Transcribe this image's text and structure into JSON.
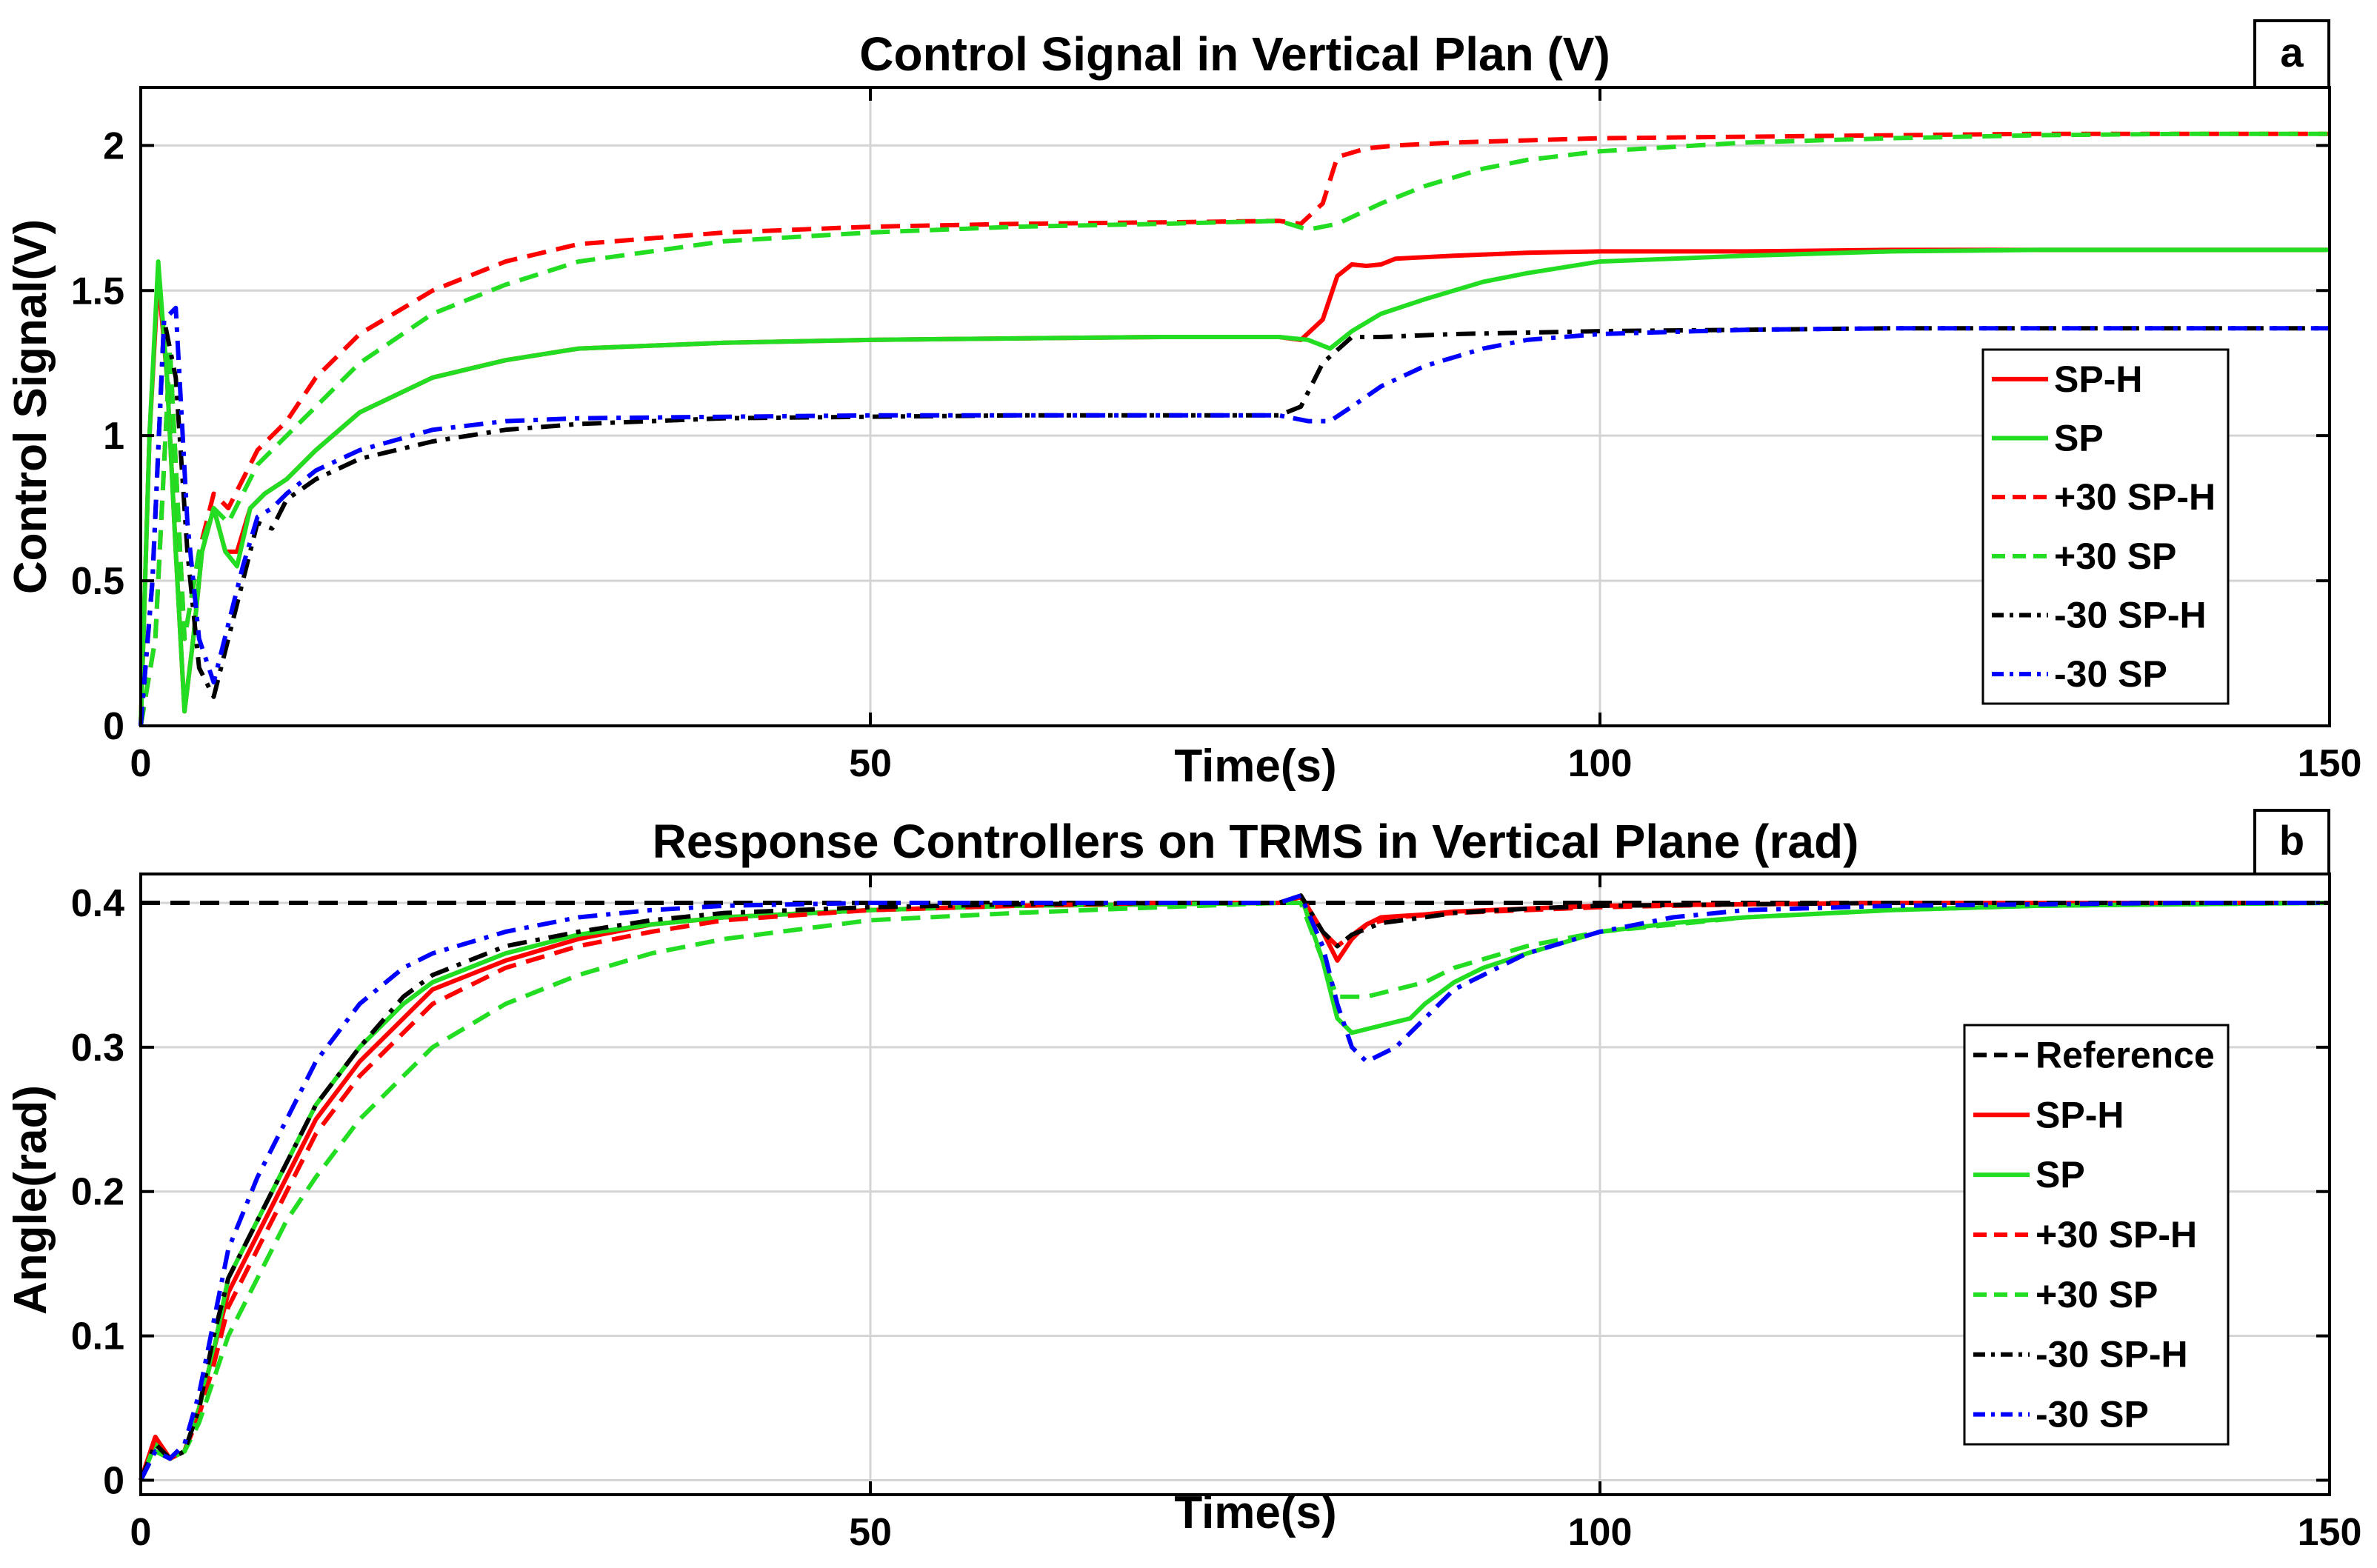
{
  "chart_data": [
    {
      "type": "line",
      "panel_label": "a",
      "title": "Control Signal in Vertical Plan (V)",
      "xlabel": "Time(s)",
      "ylabel": "Control Signal(V)",
      "xlim": [
        0,
        150
      ],
      "ylim": [
        0,
        2.2
      ],
      "xticks": [
        0,
        50,
        100,
        150
      ],
      "yticks": [
        0,
        0.5,
        1,
        1.5,
        2
      ],
      "xtick_labels": [
        "0",
        "50",
        "100",
        "150"
      ],
      "ytick_labels": [
        "0",
        "0.5",
        "1",
        "1.5",
        "2"
      ],
      "grid": true,
      "legend_position": "right",
      "series": [
        {
          "name": "SP-H",
          "color": "#ff0000",
          "dash": "solid",
          "x": [
            0,
            0.6,
            1.2,
            1.8,
            2.4,
            3,
            3.6,
            4.2,
            5,
            5.8,
            6.6,
            7.5,
            8.5,
            10,
            12,
            15,
            20,
            25,
            30,
            40,
            50,
            60,
            70,
            78,
            79.5,
            81,
            82,
            83,
            84,
            85,
            86,
            88,
            90,
            95,
            100,
            110,
            120,
            130,
            140,
            150
          ],
          "y": [
            0,
            1.0,
            1.55,
            1.2,
            0.6,
            0.05,
            0.3,
            0.6,
            0.75,
            0.6,
            0.6,
            0.75,
            0.8,
            0.85,
            0.95,
            1.08,
            1.2,
            1.26,
            1.3,
            1.32,
            1.33,
            1.335,
            1.34,
            1.34,
            1.33,
            1.4,
            1.55,
            1.59,
            1.585,
            1.59,
            1.61,
            1.615,
            1.62,
            1.63,
            1.635,
            1.635,
            1.64,
            1.64,
            1.64,
            1.64
          ]
        },
        {
          "name": "SP",
          "color": "#22dd22",
          "dash": "solid",
          "x": [
            0,
            0.6,
            1.2,
            1.8,
            2.4,
            3,
            3.6,
            4.2,
            5,
            5.8,
            6.6,
            7.5,
            8.5,
            10,
            12,
            15,
            20,
            25,
            30,
            40,
            50,
            60,
            70,
            78,
            80,
            81.5,
            83,
            85,
            88,
            92,
            95,
            100,
            110,
            120,
            130,
            140,
            150
          ],
          "y": [
            0,
            1.0,
            1.6,
            1.2,
            0.6,
            0.05,
            0.3,
            0.6,
            0.75,
            0.6,
            0.55,
            0.75,
            0.8,
            0.85,
            0.95,
            1.08,
            1.2,
            1.26,
            1.3,
            1.32,
            1.33,
            1.335,
            1.34,
            1.34,
            1.33,
            1.3,
            1.36,
            1.42,
            1.47,
            1.53,
            1.56,
            1.6,
            1.62,
            1.635,
            1.64,
            1.64,
            1.64
          ]
        },
        {
          "name": "+30 SP-H",
          "color": "#ff0000",
          "dash": "dashed",
          "x": [
            0,
            1,
            2,
            3,
            4,
            5,
            6,
            7,
            8,
            10,
            12,
            15,
            20,
            25,
            30,
            40,
            50,
            60,
            70,
            78,
            79.5,
            81,
            82,
            84,
            86,
            90,
            100,
            110,
            120,
            130,
            140,
            150
          ],
          "y": [
            0,
            0.3,
            1.3,
            0.3,
            0.6,
            0.8,
            0.75,
            0.85,
            0.95,
            1.05,
            1.2,
            1.35,
            1.5,
            1.6,
            1.66,
            1.7,
            1.72,
            1.73,
            1.735,
            1.74,
            1.73,
            1.8,
            1.96,
            1.99,
            2.0,
            2.01,
            2.025,
            2.03,
            2.035,
            2.04,
            2.04,
            2.04
          ]
        },
        {
          "name": "+30 SP",
          "color": "#22dd22",
          "dash": "dashed",
          "x": [
            0,
            1,
            2,
            3,
            4,
            5,
            6,
            7,
            8,
            10,
            12,
            15,
            20,
            25,
            30,
            40,
            50,
            60,
            70,
            78,
            80,
            82,
            85,
            88,
            92,
            95,
            100,
            110,
            120,
            130,
            140,
            150
          ],
          "y": [
            0,
            0.3,
            1.3,
            0.3,
            0.6,
            0.75,
            0.7,
            0.8,
            0.9,
            1.0,
            1.1,
            1.25,
            1.42,
            1.52,
            1.6,
            1.67,
            1.7,
            1.72,
            1.73,
            1.74,
            1.71,
            1.73,
            1.8,
            1.86,
            1.92,
            1.95,
            1.98,
            2.01,
            2.025,
            2.035,
            2.04,
            2.04
          ]
        },
        {
          "name": "-30 SP-H",
          "color": "#000000",
          "dash": "dashdot",
          "x": [
            0,
            0.8,
            1.6,
            2.4,
            3.2,
            4,
            5,
            6,
            7,
            8,
            9,
            10,
            12,
            15,
            20,
            25,
            30,
            40,
            50,
            60,
            70,
            78,
            79.5,
            81,
            83,
            85,
            90,
            100,
            110,
            120,
            130,
            140,
            150
          ],
          "y": [
            0,
            0.5,
            1.4,
            1.2,
            0.6,
            0.2,
            0.1,
            0.3,
            0.5,
            0.7,
            0.68,
            0.78,
            0.85,
            0.92,
            0.98,
            1.02,
            1.04,
            1.06,
            1.065,
            1.07,
            1.07,
            1.07,
            1.1,
            1.25,
            1.34,
            1.34,
            1.35,
            1.36,
            1.365,
            1.37,
            1.37,
            1.37,
            1.37
          ]
        },
        {
          "name": "-30 SP",
          "color": "#0000ff",
          "dash": "dashdot",
          "x": [
            0,
            0.8,
            1.6,
            2.4,
            3.2,
            4,
            5,
            6,
            7,
            8,
            9,
            10,
            12,
            15,
            20,
            25,
            30,
            40,
            50,
            60,
            70,
            78,
            80,
            81.5,
            83,
            85,
            88,
            92,
            95,
            100,
            110,
            120,
            130,
            140,
            150
          ],
          "y": [
            0,
            0.5,
            1.4,
            1.44,
            0.7,
            0.3,
            0.15,
            0.35,
            0.55,
            0.72,
            0.75,
            0.8,
            0.88,
            0.95,
            1.02,
            1.05,
            1.06,
            1.065,
            1.07,
            1.07,
            1.07,
            1.07,
            1.05,
            1.05,
            1.1,
            1.17,
            1.24,
            1.3,
            1.33,
            1.35,
            1.365,
            1.37,
            1.37,
            1.37,
            1.37
          ]
        }
      ]
    },
    {
      "type": "line",
      "panel_label": "b",
      "title": "Response Controllers on  TRMS in Vertical Plane (rad)",
      "xlabel": "Time(s)",
      "ylabel": "Angle(rad)",
      "xlim": [
        0,
        150
      ],
      "ylim": [
        -0.01,
        0.42
      ],
      "xticks": [
        0,
        50,
        100,
        150
      ],
      "yticks": [
        0,
        0.1,
        0.2,
        0.3,
        0.4
      ],
      "xtick_labels": [
        "0",
        "50",
        "100",
        "150"
      ],
      "ytick_labels": [
        "0",
        "0.1",
        "0.2",
        "0.3",
        "0.4"
      ],
      "grid": true,
      "legend_position": "right",
      "series": [
        {
          "name": "Reference",
          "color": "#000000",
          "dash": "dashed",
          "x": [
            0,
            150
          ],
          "y": [
            0.4,
            0.4
          ]
        },
        {
          "name": "SP-H",
          "color": "#ff0000",
          "dash": "solid",
          "x": [
            0,
            1,
            2,
            3,
            4,
            5,
            6,
            8,
            10,
            12,
            15,
            18,
            20,
            25,
            30,
            35,
            40,
            50,
            60,
            70,
            78,
            79.5,
            81,
            82,
            83,
            84,
            85,
            88,
            90,
            95,
            100,
            110,
            120,
            130,
            140,
            150
          ],
          "y": [
            0,
            0.03,
            0.015,
            0.02,
            0.05,
            0.09,
            0.13,
            0.17,
            0.21,
            0.25,
            0.29,
            0.32,
            0.34,
            0.36,
            0.375,
            0.385,
            0.39,
            0.395,
            0.398,
            0.399,
            0.4,
            0.405,
            0.38,
            0.36,
            0.375,
            0.385,
            0.39,
            0.392,
            0.394,
            0.396,
            0.398,
            0.399,
            0.4,
            0.4,
            0.4,
            0.4
          ]
        },
        {
          "name": "SP",
          "color": "#22dd22",
          "dash": "solid",
          "x": [
            0,
            1,
            2,
            3,
            4,
            5,
            6,
            8,
            10,
            12,
            15,
            18,
            20,
            25,
            30,
            35,
            40,
            50,
            60,
            70,
            78,
            79.5,
            81,
            82,
            83,
            85,
            87,
            88,
            90,
            92,
            95,
            100,
            105,
            110,
            120,
            130,
            140,
            150
          ],
          "y": [
            0,
            0.025,
            0.015,
            0.02,
            0.05,
            0.09,
            0.14,
            0.18,
            0.22,
            0.26,
            0.3,
            0.33,
            0.345,
            0.365,
            0.378,
            0.385,
            0.39,
            0.395,
            0.398,
            0.399,
            0.4,
            0.405,
            0.36,
            0.32,
            0.31,
            0.315,
            0.32,
            0.33,
            0.345,
            0.355,
            0.365,
            0.38,
            0.386,
            0.39,
            0.395,
            0.398,
            0.399,
            0.4
          ]
        },
        {
          "name": "+30 SP-H",
          "color": "#ff0000",
          "dash": "dashed",
          "x": [
            0,
            1,
            2,
            3,
            4,
            5,
            6,
            8,
            10,
            12,
            15,
            18,
            20,
            25,
            30,
            35,
            40,
            50,
            60,
            70,
            78,
            79.5,
            81,
            82,
            84,
            86,
            90,
            100,
            110,
            120,
            130,
            140,
            150
          ],
          "y": [
            0,
            0.03,
            0.015,
            0.02,
            0.045,
            0.08,
            0.12,
            0.16,
            0.2,
            0.24,
            0.28,
            0.31,
            0.33,
            0.355,
            0.37,
            0.38,
            0.388,
            0.395,
            0.398,
            0.4,
            0.4,
            0.404,
            0.38,
            0.37,
            0.385,
            0.39,
            0.393,
            0.397,
            0.399,
            0.4,
            0.4,
            0.4,
            0.4
          ]
        },
        {
          "name": "+30 SP",
          "color": "#22dd22",
          "dash": "dashed",
          "x": [
            0,
            1,
            2,
            3,
            4,
            5,
            6,
            8,
            10,
            12,
            15,
            18,
            20,
            25,
            30,
            35,
            40,
            50,
            60,
            70,
            78,
            79.5,
            81,
            82,
            84,
            86,
            88,
            90,
            95,
            100,
            110,
            120,
            130,
            140,
            150
          ],
          "y": [
            0,
            0.02,
            0.015,
            0.02,
            0.04,
            0.07,
            0.1,
            0.14,
            0.18,
            0.21,
            0.25,
            0.28,
            0.3,
            0.33,
            0.35,
            0.365,
            0.375,
            0.388,
            0.393,
            0.397,
            0.4,
            0.4,
            0.36,
            0.335,
            0.335,
            0.34,
            0.345,
            0.355,
            0.37,
            0.38,
            0.39,
            0.395,
            0.398,
            0.399,
            0.4
          ]
        },
        {
          "name": "-30 SP-H",
          "color": "#000000",
          "dash": "dashdot",
          "x": [
            0,
            1,
            2,
            3,
            4,
            5,
            6,
            8,
            10,
            12,
            15,
            18,
            20,
            25,
            30,
            35,
            40,
            50,
            60,
            70,
            78,
            79.5,
            81,
            82,
            83,
            85,
            88,
            90,
            95,
            100,
            110,
            120,
            130,
            140,
            150
          ],
          "y": [
            0,
            0.025,
            0.015,
            0.02,
            0.05,
            0.1,
            0.14,
            0.18,
            0.22,
            0.26,
            0.3,
            0.335,
            0.35,
            0.37,
            0.38,
            0.388,
            0.393,
            0.397,
            0.399,
            0.4,
            0.4,
            0.405,
            0.38,
            0.37,
            0.378,
            0.386,
            0.39,
            0.393,
            0.396,
            0.398,
            0.399,
            0.4,
            0.4,
            0.4,
            0.4
          ]
        },
        {
          "name": "-30 SP",
          "color": "#0000ff",
          "dash": "dashdot",
          "x": [
            0,
            1,
            2,
            3,
            4,
            5,
            6,
            8,
            10,
            12,
            15,
            18,
            20,
            25,
            30,
            35,
            40,
            50,
            60,
            70,
            78,
            79.5,
            81,
            82,
            83,
            84,
            86,
            88,
            90,
            95,
            100,
            105,
            110,
            120,
            130,
            140,
            150
          ],
          "y": [
            0,
            0.02,
            0.015,
            0.025,
            0.06,
            0.11,
            0.16,
            0.21,
            0.25,
            0.29,
            0.33,
            0.355,
            0.365,
            0.38,
            0.39,
            0.395,
            0.398,
            0.4,
            0.4,
            0.4,
            0.4,
            0.405,
            0.37,
            0.33,
            0.3,
            0.29,
            0.3,
            0.32,
            0.34,
            0.365,
            0.38,
            0.39,
            0.395,
            0.398,
            0.399,
            0.4,
            0.4
          ]
        }
      ]
    }
  ]
}
